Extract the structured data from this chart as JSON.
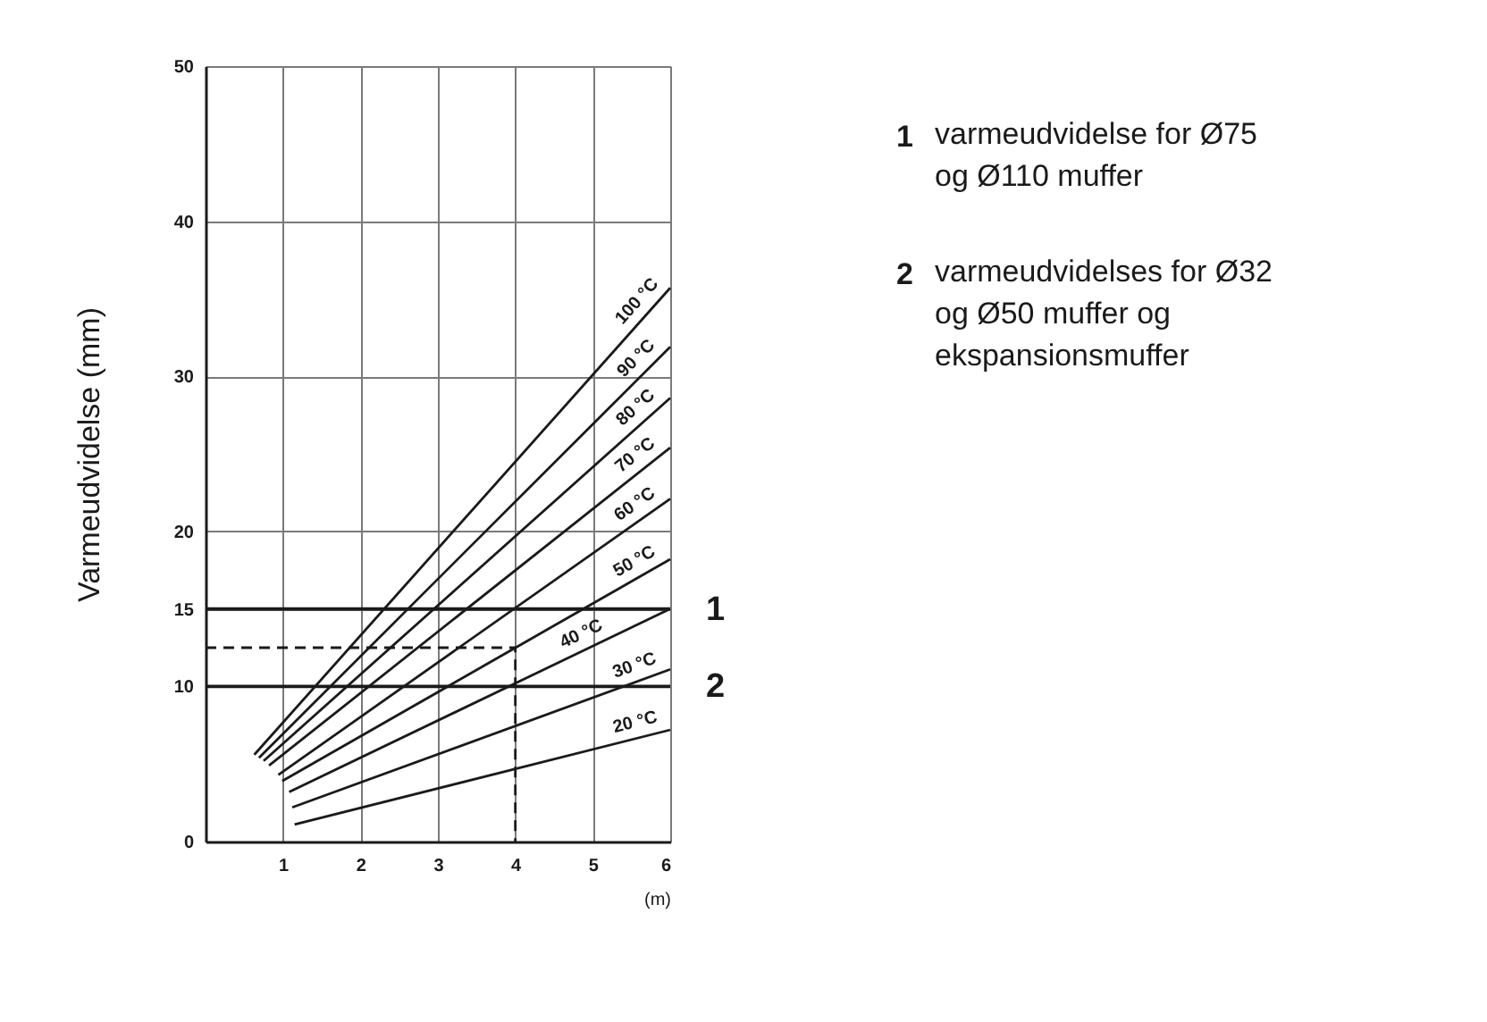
{
  "chart_data": {
    "type": "line",
    "xlabel": "(m)",
    "ylabel": "Varmeudvidelse (mm)",
    "xlim": [
      0,
      6
    ],
    "xticks": [
      1,
      2,
      3,
      4,
      5,
      6
    ],
    "ylim": [
      0,
      50
    ],
    "yticks": [
      0,
      10,
      15,
      20,
      30,
      40,
      50
    ],
    "grid": true,
    "line_style": "solid",
    "series": [
      {
        "name": "100 °C",
        "color": "#1a1a1a",
        "x": [
          0.63,
          6
        ],
        "values": [
          5.6,
          35.7
        ]
      },
      {
        "name": "90 °C",
        "color": "#1a1a1a",
        "x": [
          0.69,
          6
        ],
        "values": [
          5.4,
          31.9
        ]
      },
      {
        "name": "80 °C",
        "color": "#1a1a1a",
        "x": [
          0.75,
          6
        ],
        "values": [
          5.2,
          28.6
        ]
      },
      {
        "name": "70 °C",
        "color": "#1a1a1a",
        "x": [
          0.82,
          6
        ],
        "values": [
          4.9,
          25.4
        ]
      },
      {
        "name": "60 °C",
        "color": "#1a1a1a",
        "x": [
          0.94,
          6
        ],
        "values": [
          4.3,
          22.1
        ]
      },
      {
        "name": "50 °C",
        "color": "#1a1a1a",
        "x": [
          0.99,
          6
        ],
        "values": [
          3.9,
          18.2
        ]
      },
      {
        "name": "40 °C",
        "color": "#1a1a1a",
        "x": [
          1.08,
          6
        ],
        "values": [
          3.2,
          15.0
        ]
      },
      {
        "name": "30 °C",
        "color": "#1a1a1a",
        "x": [
          1.12,
          6
        ],
        "values": [
          2.2,
          11.1
        ]
      },
      {
        "name": "20 °C",
        "color": "#1a1a1a",
        "x": [
          1.15,
          6
        ],
        "values": [
          1.1,
          7.2
        ]
      },
      {
        "name": "1",
        "color": "#1a1a1a",
        "x": [
          0,
          6
        ],
        "values": [
          15,
          15
        ]
      },
      {
        "name": "2",
        "color": "#1a1a1a",
        "x": [
          0,
          6
        ],
        "values": [
          10,
          10
        ]
      },
      {
        "color": "#1a1a1a",
        "line_style": "dashed",
        "x": [
          0,
          4,
          4
        ],
        "values": [
          12.5,
          12.5,
          0
        ]
      }
    ],
    "annotations": [
      "1 varmeudvidelse for Ø75 og Ø110 muffer",
      "2 varmeudvidelses for Ø32 og Ø50 muffer og ekspansionsmuffer"
    ]
  }
}
